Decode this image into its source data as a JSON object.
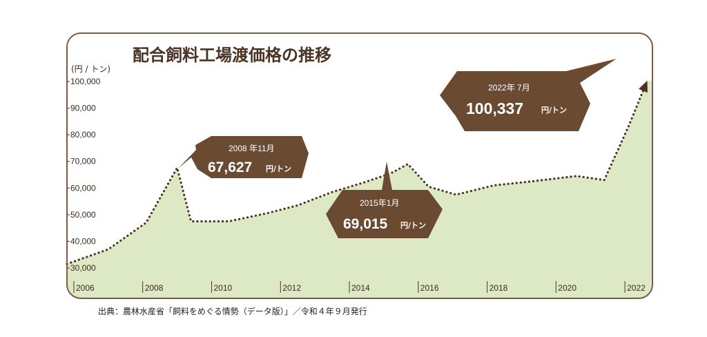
{
  "colors": {
    "frame": "#7a5b45",
    "fill": "#dde9c4",
    "line": "#4a3324",
    "tag": "#6b4a32"
  },
  "chart_data": {
    "type": "area",
    "title": "配合飼料工場渡価格の推移",
    "ylabel": "(円 / トン)",
    "xlabel": "",
    "ylim": [
      30000,
      100000
    ],
    "xlim": [
      2005.7,
      2022.7
    ],
    "y_ticks": [
      "100,000",
      "90,000",
      "80,000",
      "70,000",
      "60,000",
      "50,000",
      "40,000",
      "30,000"
    ],
    "x_ticks": [
      "2006",
      "2008",
      "2010",
      "2012",
      "2014",
      "2016",
      "2018",
      "2020",
      "2022"
    ],
    "x": [
      2005.7,
      2006.9,
      2008.0,
      2008.9,
      2009.3,
      2010.4,
      2011.5,
      2012.4,
      2013.4,
      2014.3,
      2015.1,
      2015.6,
      2016.2,
      2017.0,
      2018.1,
      2019.2,
      2020.5,
      2021.3,
      2022.0,
      2022.55
    ],
    "values": [
      31500,
      37000,
      47000,
      67600,
      47500,
      47500,
      50500,
      53500,
      58500,
      62000,
      65500,
      69000,
      60500,
      57500,
      61000,
      62500,
      64500,
      63000,
      83000,
      100337
    ],
    "grid": false,
    "annotations": [
      {
        "date": "2008 年11月",
        "value": "67,627",
        "unit": "円/トン"
      },
      {
        "date": "2015年1月",
        "value": "69,015",
        "unit": "円/トン"
      },
      {
        "date": "2022年 7月",
        "value": "100,337",
        "unit": "円/トン"
      }
    ]
  },
  "source": "出典：農林水産省「飼料をめぐる情勢（データ版）」／令和４年９月発行"
}
